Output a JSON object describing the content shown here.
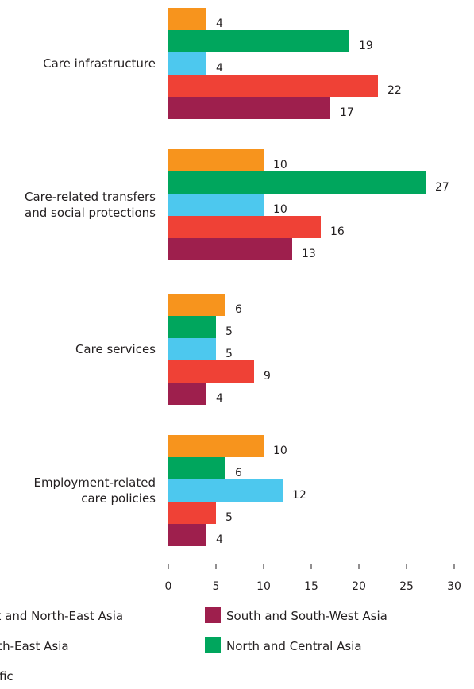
{
  "chart_data": {
    "type": "bar",
    "orientation": "horizontal",
    "categories": [
      [
        "Care infrastructure"
      ],
      [
        "Care-related transfers",
        "and social protections"
      ],
      [
        "Care services"
      ],
      [
        "Employment-related",
        "care policies"
      ]
    ],
    "series": [
      {
        "name": "East and North-East Asia",
        "color": "#f7941d",
        "values": [
          4,
          10,
          6,
          10
        ]
      },
      {
        "name": "North and Central Asia",
        "color": "#00a65d",
        "values": [
          19,
          27,
          5,
          6
        ]
      },
      {
        "name": "South-East Asia",
        "color": "#4dc8ee",
        "values": [
          4,
          10,
          5,
          12
        ]
      },
      {
        "name": "Pacific",
        "color": "#ef4136",
        "values": [
          22,
          16,
          9,
          5
        ]
      },
      {
        "name": "South and South-West Asia",
        "color": "#9e1f4d",
        "values": [
          17,
          13,
          4,
          4
        ]
      }
    ],
    "xlim": [
      0,
      30
    ],
    "xticks": [
      0,
      5,
      10,
      15,
      20,
      25,
      30
    ],
    "grid": false,
    "legend_position": "bottom",
    "title": "",
    "xlabel": "",
    "ylabel": ""
  }
}
